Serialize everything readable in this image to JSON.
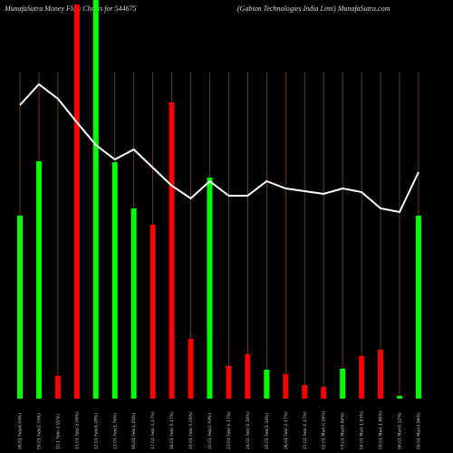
{
  "chart_data": {
    "type": "bar",
    "title": "MunafaSutra  Money Flow  Charts for 544675",
    "subtitle": "(Gabion  Technologies India  Limi) MunafaSutra.com",
    "categories": [
      "06.01 Feb(4.04%)",
      "09.01 Feb(2.74%)",
      "10.1 Feb(-2.91%)",
      "11.01 Feb(-3.99%)",
      "12.01 Feb(4.28%)",
      "13.01 Feb(1.76%)",
      "16.01 Feb(1.45%)",
      "17.01 Feb(-1.17%)",
      "18.01 Feb(-5.17%)",
      "19.01 Feb(-1.29%)",
      "20.01 Feb(2.93%)",
      "23.01 Feb(-0.17%)",
      "24.01 Feb(-0.18%)",
      "25.01 Feb(1.34%)",
      "26.01 Feb(-1.17%)",
      "27.01 Feb(-0.17%)",
      "02.01 Mar(-0.16%)",
      "03.01 Mar(0.84%)",
      "04.01 Mar(-1.63%)",
      "05.01 Mar(-1.86%)",
      "06.01 Mar(0.12%)",
      "09.01 Mar(3.96%)"
    ],
    "values": [
      202,
      262,
      25,
      435,
      460,
      261,
      210,
      192,
      327,
      66,
      244,
      36,
      49,
      32,
      27,
      15,
      13,
      33,
      47,
      54,
      3,
      202
    ],
    "colors": [
      "#00ff00",
      "#00ff00",
      "#ff0000",
      "#ff0000",
      "#00ff00",
      "#00ff00",
      "#00ff00",
      "#ff0000",
      "#ff0000",
      "#ff0000",
      "#00ff00",
      "#ff0000",
      "#ff0000",
      "#00ff00",
      "#ff0000",
      "#ff0000",
      "#ff0000",
      "#00ff00",
      "#ff0000",
      "#ff0000",
      "#00ff00",
      "#00ff00"
    ],
    "line_values": [
      324,
      347,
      331,
      305,
      280,
      264,
      275,
      255,
      235,
      221,
      240,
      224,
      224,
      240,
      232,
      229,
      226,
      232,
      228,
      210,
      206,
      250
    ],
    "line_color": "#ffffff",
    "grid_color": "#8a4a10",
    "ylim": [
      0,
      440
    ]
  }
}
